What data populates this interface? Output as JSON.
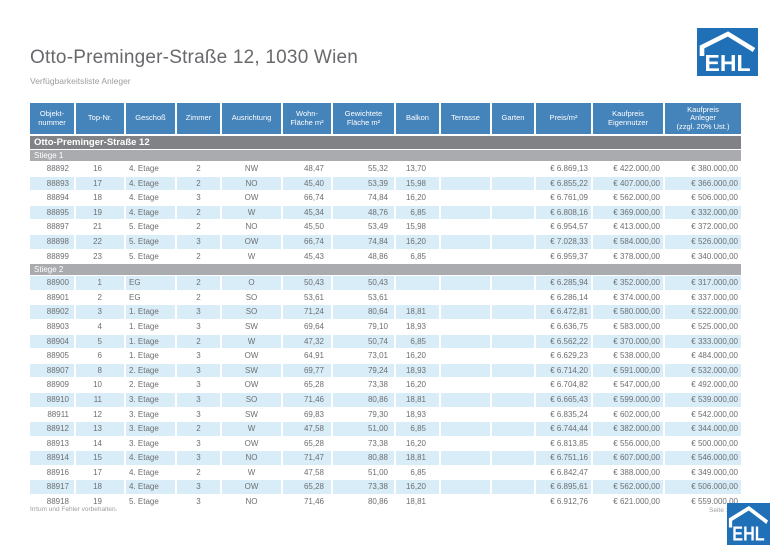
{
  "page": {
    "title": "Otto-Preminger-Straße 12, 1030 Wien",
    "subtitle": "Verfügbarkeitsliste Anleger",
    "footer_note": "Irrtum und Fehler vorbehalten.",
    "page_label": "Seite 1"
  },
  "logo": {
    "text": "EHL"
  },
  "colors": {
    "header_blue": "#4583BB",
    "logo_blue": "#2070B8",
    "band_dark": "#808285",
    "band_light": "#A9ABAE",
    "row_alt_blue": "#D8EDF8",
    "text_gray": "#6E6F72"
  },
  "table": {
    "group_header": "Otto-Preminger-Straße 12",
    "columns": [
      {
        "id": "objektnummer",
        "label": "Objekt-\nnummer"
      },
      {
        "id": "topnr",
        "label": "Top-Nr."
      },
      {
        "id": "geschoss",
        "label": "Geschoß"
      },
      {
        "id": "zimmer",
        "label": "Zimmer"
      },
      {
        "id": "ausrichtung",
        "label": "Ausrichtung"
      },
      {
        "id": "wohnflaeche",
        "label": "Wohn-\nFläche m²"
      },
      {
        "id": "gewichtete",
        "label": "Gewichtete\nFläche m²"
      },
      {
        "id": "balkon",
        "label": "Balkon"
      },
      {
        "id": "terrasse",
        "label": "Terrasse"
      },
      {
        "id": "garten",
        "label": "Garten"
      },
      {
        "id": "preis",
        "label": "Preis/m²"
      },
      {
        "id": "kp-eig",
        "label": "Kaufpreis\nEigennutzer"
      },
      {
        "id": "kp-anl",
        "label": "Kaufpreis\nAnleger\n(zzgl. 20% Ust.)"
      }
    ],
    "sections": [
      {
        "name": "Stiege 1",
        "rows": [
          [
            "88892",
            "16",
            "4. Etage",
            "2",
            "NW",
            "48,47",
            "55,32",
            "13,70",
            "",
            "",
            "€ 6.869,13",
            "€ 422.000,00",
            "€ 380.000,00"
          ],
          [
            "88893",
            "17",
            "4. Etage",
            "2",
            "NO",
            "45,40",
            "53,39",
            "15,98",
            "",
            "",
            "€ 6.855,22",
            "€ 407.000,00",
            "€ 366.000,00"
          ],
          [
            "88894",
            "18",
            "4. Etage",
            "3",
            "OW",
            "66,74",
            "74,84",
            "16,20",
            "",
            "",
            "€ 6.761,09",
            "€ 562.000,00",
            "€ 506.000,00"
          ],
          [
            "88895",
            "19",
            "4. Etage",
            "2",
            "W",
            "45,34",
            "48,76",
            "6,85",
            "",
            "",
            "€ 6.808,16",
            "€ 369.000,00",
            "€ 332.000,00"
          ],
          [
            "88897",
            "21",
            "5. Etage",
            "2",
            "NO",
            "45,50",
            "53,49",
            "15,98",
            "",
            "",
            "€ 6.954,57",
            "€ 413.000,00",
            "€ 372.000,00"
          ],
          [
            "88898",
            "22",
            "5. Etage",
            "3",
            "OW",
            "66,74",
            "74,84",
            "16,20",
            "",
            "",
            "€ 7.028,33",
            "€ 584.000,00",
            "€ 526.000,00"
          ],
          [
            "88899",
            "23",
            "5. Etage",
            "2",
            "W",
            "45,43",
            "48,86",
            "6,85",
            "",
            "",
            "€ 6.959,37",
            "€ 378.000,00",
            "€ 340.000,00"
          ]
        ]
      },
      {
        "name": "Stiege 2",
        "rows": [
          [
            "88900",
            "1",
            "EG",
            "2",
            "O",
            "50,43",
            "50,43",
            "",
            "",
            "",
            "€ 6.285,94",
            "€ 352.000,00",
            "€ 317.000,00"
          ],
          [
            "88901",
            "2",
            "EG",
            "2",
            "SO",
            "53,61",
            "53,61",
            "",
            "",
            "",
            "€ 6.286,14",
            "€ 374.000,00",
            "€ 337.000,00"
          ],
          [
            "88902",
            "3",
            "1. Etage",
            "3",
            "SO",
            "71,24",
            "80,64",
            "18,81",
            "",
            "",
            "€ 6.472,81",
            "€ 580.000,00",
            "€ 522.000,00"
          ],
          [
            "88903",
            "4",
            "1. Etage",
            "3",
            "SW",
            "69,64",
            "79,10",
            "18,93",
            "",
            "",
            "€ 6.636,75",
            "€ 583.000,00",
            "€ 525.000,00"
          ],
          [
            "88904",
            "5",
            "1. Etage",
            "2",
            "W",
            "47,32",
            "50,74",
            "6,85",
            "",
            "",
            "€ 6.562,22",
            "€ 370.000,00",
            "€ 333.000,00"
          ],
          [
            "88905",
            "6",
            "1. Etage",
            "3",
            "OW",
            "64,91",
            "73,01",
            "16,20",
            "",
            "",
            "€ 6.629,23",
            "€ 538.000,00",
            "€ 484.000,00"
          ],
          [
            "88907",
            "8",
            "2. Etage",
            "3",
            "SW",
            "69,77",
            "79,24",
            "18,93",
            "",
            "",
            "€ 6.714,20",
            "€ 591.000,00",
            "€ 532.000,00"
          ],
          [
            "88909",
            "10",
            "2. Etage",
            "3",
            "OW",
            "65,28",
            "73,38",
            "16,20",
            "",
            "",
            "€ 6.704,82",
            "€ 547.000,00",
            "€ 492.000,00"
          ],
          [
            "88910",
            "11",
            "3. Etage",
            "3",
            "SO",
            "71,46",
            "80,86",
            "18,81",
            "",
            "",
            "€ 6.665,43",
            "€ 599.000,00",
            "€ 539.000,00"
          ],
          [
            "88911",
            "12",
            "3. Etage",
            "3",
            "SW",
            "69,83",
            "79,30",
            "18,93",
            "",
            "",
            "€ 6.835,24",
            "€ 602.000,00",
            "€ 542.000,00"
          ],
          [
            "88912",
            "13",
            "3. Etage",
            "2",
            "W",
            "47,58",
            "51,00",
            "6,85",
            "",
            "",
            "€ 6.744,44",
            "€ 382.000,00",
            "€ 344.000,00"
          ],
          [
            "88913",
            "14",
            "3. Etage",
            "3",
            "OW",
            "65,28",
            "73,38",
            "16,20",
            "",
            "",
            "€ 6.813,85",
            "€ 556.000,00",
            "€ 500.000,00"
          ],
          [
            "88914",
            "15",
            "4. Etage",
            "3",
            "NO",
            "71,47",
            "80,88",
            "18,81",
            "",
            "",
            "€ 6.751,16",
            "€ 607.000,00",
            "€ 546.000,00"
          ],
          [
            "88916",
            "17",
            "4. Etage",
            "2",
            "W",
            "47,58",
            "51,00",
            "6,85",
            "",
            "",
            "€ 6.842,47",
            "€ 388.000,00",
            "€ 349.000,00"
          ],
          [
            "88917",
            "18",
            "4. Etage",
            "3",
            "OW",
            "65,28",
            "73,38",
            "16,20",
            "",
            "",
            "€ 6.895,61",
            "€ 562.000,00",
            "€ 506.000,00"
          ],
          [
            "88918",
            "19",
            "5. Etage",
            "3",
            "NO",
            "71,46",
            "80,86",
            "18,81",
            "",
            "",
            "€ 6.912,76",
            "€ 621.000,00",
            "€ 559.000,00"
          ]
        ]
      }
    ]
  }
}
